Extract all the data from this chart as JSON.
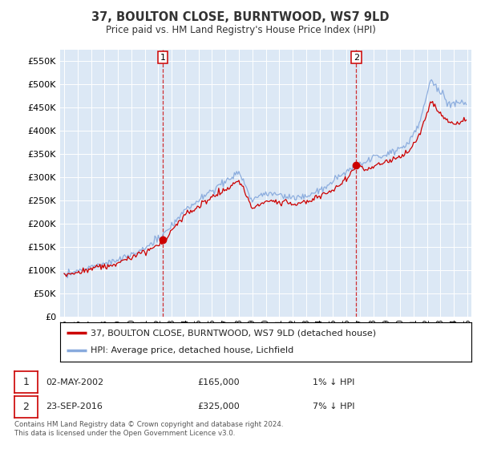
{
  "title": "37, BOULTON CLOSE, BURNTWOOD, WS7 9LD",
  "subtitle": "Price paid vs. HM Land Registry's House Price Index (HPI)",
  "ylim": [
    0,
    575000
  ],
  "yticks": [
    0,
    50000,
    100000,
    150000,
    200000,
    250000,
    300000,
    350000,
    400000,
    450000,
    500000,
    550000
  ],
  "sale1_date": 2002.33,
  "sale1_price": 165000,
  "sale2_date": 2016.73,
  "sale2_price": 325000,
  "legend_house": "37, BOULTON CLOSE, BURNTWOOD, WS7 9LD (detached house)",
  "legend_hpi": "HPI: Average price, detached house, Lichfield",
  "line_color_house": "#cc0000",
  "line_color_hpi": "#88aadd",
  "background_color": "#ffffff",
  "plot_bg_color": "#dce8f5",
  "grid_color": "#ffffff",
  "footer": "Contains HM Land Registry data © Crown copyright and database right 2024.\nThis data is licensed under the Open Government Licence v3.0."
}
